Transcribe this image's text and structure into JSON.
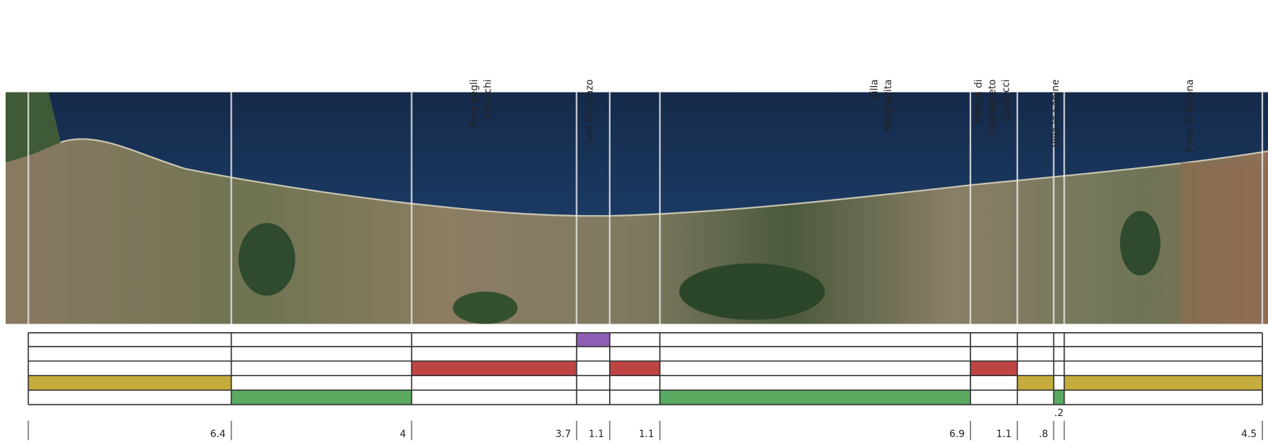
{
  "places": [
    {
      "lines": [
        "Riva degli",
        "Etruschi"
      ]
    },
    {
      "lines": [
        "San Vincenzo"
      ]
    },
    {
      "lines": [
        "Villa",
        "Margherita"
      ]
    },
    {
      "lines": [
        "Marina di",
        "Castagneto",
        "Carducci"
      ]
    },
    {
      "lines": [
        "Villa le Sabine"
      ]
    },
    {
      "lines": [
        "Forte di Bibona"
      ]
    }
  ],
  "segments": [
    {
      "length": "6.4",
      "color": "#c6ac3c"
    },
    {
      "length": "4",
      "color": "#5aaa62"
    },
    {
      "length": "3.7",
      "color": "#bf4545"
    },
    {
      "length": "1.1",
      "color": "#8e5fb5"
    },
    {
      "length": "1.1",
      "color": "#bf4545"
    },
    {
      "length": "6.9",
      "color": "#5aaa62"
    },
    {
      "length": "1.1",
      "color": "#bf4545"
    },
    {
      "length": ".8",
      "color": "#c6ac3c"
    },
    {
      "length": ".2",
      "color": "#5aaa62"
    },
    {
      "length": "4.5",
      "color": "#c6ac3c"
    }
  ]
}
